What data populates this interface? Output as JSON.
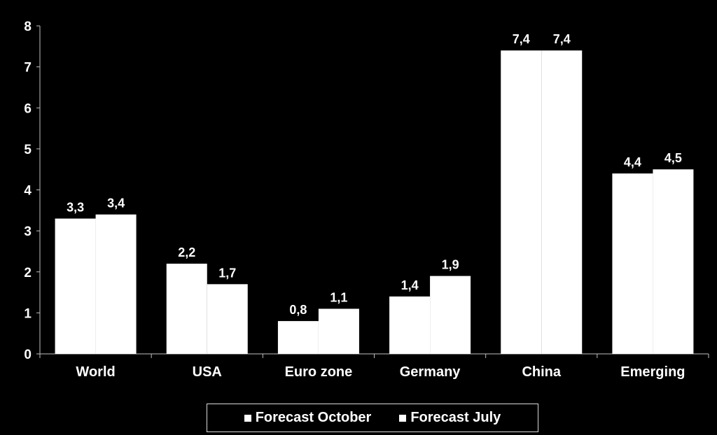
{
  "chart_data": {
    "type": "bar",
    "categories": [
      "World",
      "USA",
      "Euro zone",
      "Germany",
      "China",
      "Emerging"
    ],
    "series": [
      {
        "name": "Forecast October",
        "values": [
          3.3,
          2.2,
          0.8,
          1.4,
          7.4,
          4.4
        ],
        "labels": [
          "3,3",
          "2,2",
          "0,8",
          "1,4",
          "7,4",
          "4,4"
        ]
      },
      {
        "name": "Forecast July",
        "values": [
          3.4,
          1.7,
          1.1,
          1.9,
          7.4,
          4.5
        ],
        "labels": [
          "3,4",
          "1,7",
          "1,1",
          "1,9",
          "7,4",
          "4,5"
        ]
      }
    ],
    "yticks": [
      "0",
      "1",
      "2",
      "3",
      "4",
      "5",
      "6",
      "7",
      "8"
    ],
    "ylim": [
      0,
      8
    ],
    "grid": false,
    "legend_position": "bottom",
    "colors": {
      "background": "#000000",
      "bars": "#ffffff",
      "text": "#ffffff",
      "axis": "#bfbfbf"
    }
  }
}
